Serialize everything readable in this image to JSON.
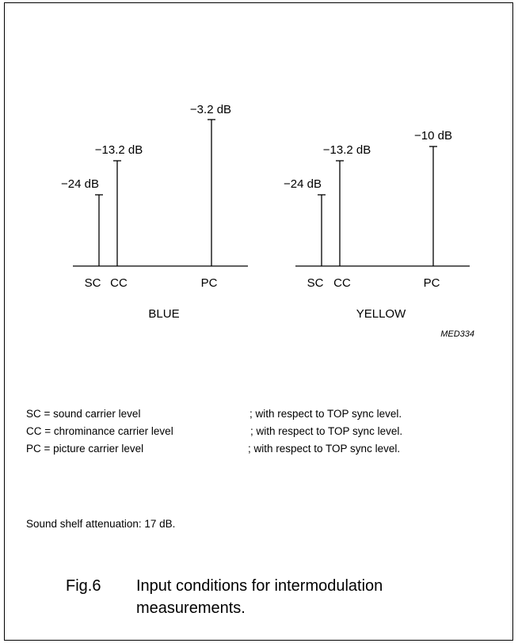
{
  "diagram": {
    "panels": [
      {
        "name": "BLUE",
        "title": "BLUE",
        "carriers": [
          {
            "abbr": "SC",
            "level_label": "−24 dB",
            "level_db": -24
          },
          {
            "abbr": "CC",
            "level_label": "−13.2 dB",
            "level_db": -13.2
          },
          {
            "abbr": "PC",
            "level_label": "−3.2 dB",
            "level_db": -3.2
          }
        ]
      },
      {
        "name": "YELLOW",
        "title": "YELLOW",
        "carriers": [
          {
            "abbr": "SC",
            "level_label": "−24 dB",
            "level_db": -24
          },
          {
            "abbr": "CC",
            "level_label": "−13.2 dB",
            "level_db": -13.2
          },
          {
            "abbr": "PC",
            "level_label": "−10 dB",
            "level_db": -10
          }
        ]
      }
    ],
    "code": "MED334"
  },
  "legend": [
    {
      "abbr_text": "SC = sound carrier level",
      "ref_text": "; with respect to TOP sync level."
    },
    {
      "abbr_text": "CC = chrominance carrier level",
      "ref_text": "; with respect to TOP sync level."
    },
    {
      "abbr_text": "PC = picture carrier level",
      "ref_text": "; with respect to TOP sync level."
    }
  ],
  "note": "Sound shelf attenuation: 17 dB.",
  "figure": {
    "number": "Fig.6",
    "caption": "Input conditions for intermodulation measurements."
  }
}
